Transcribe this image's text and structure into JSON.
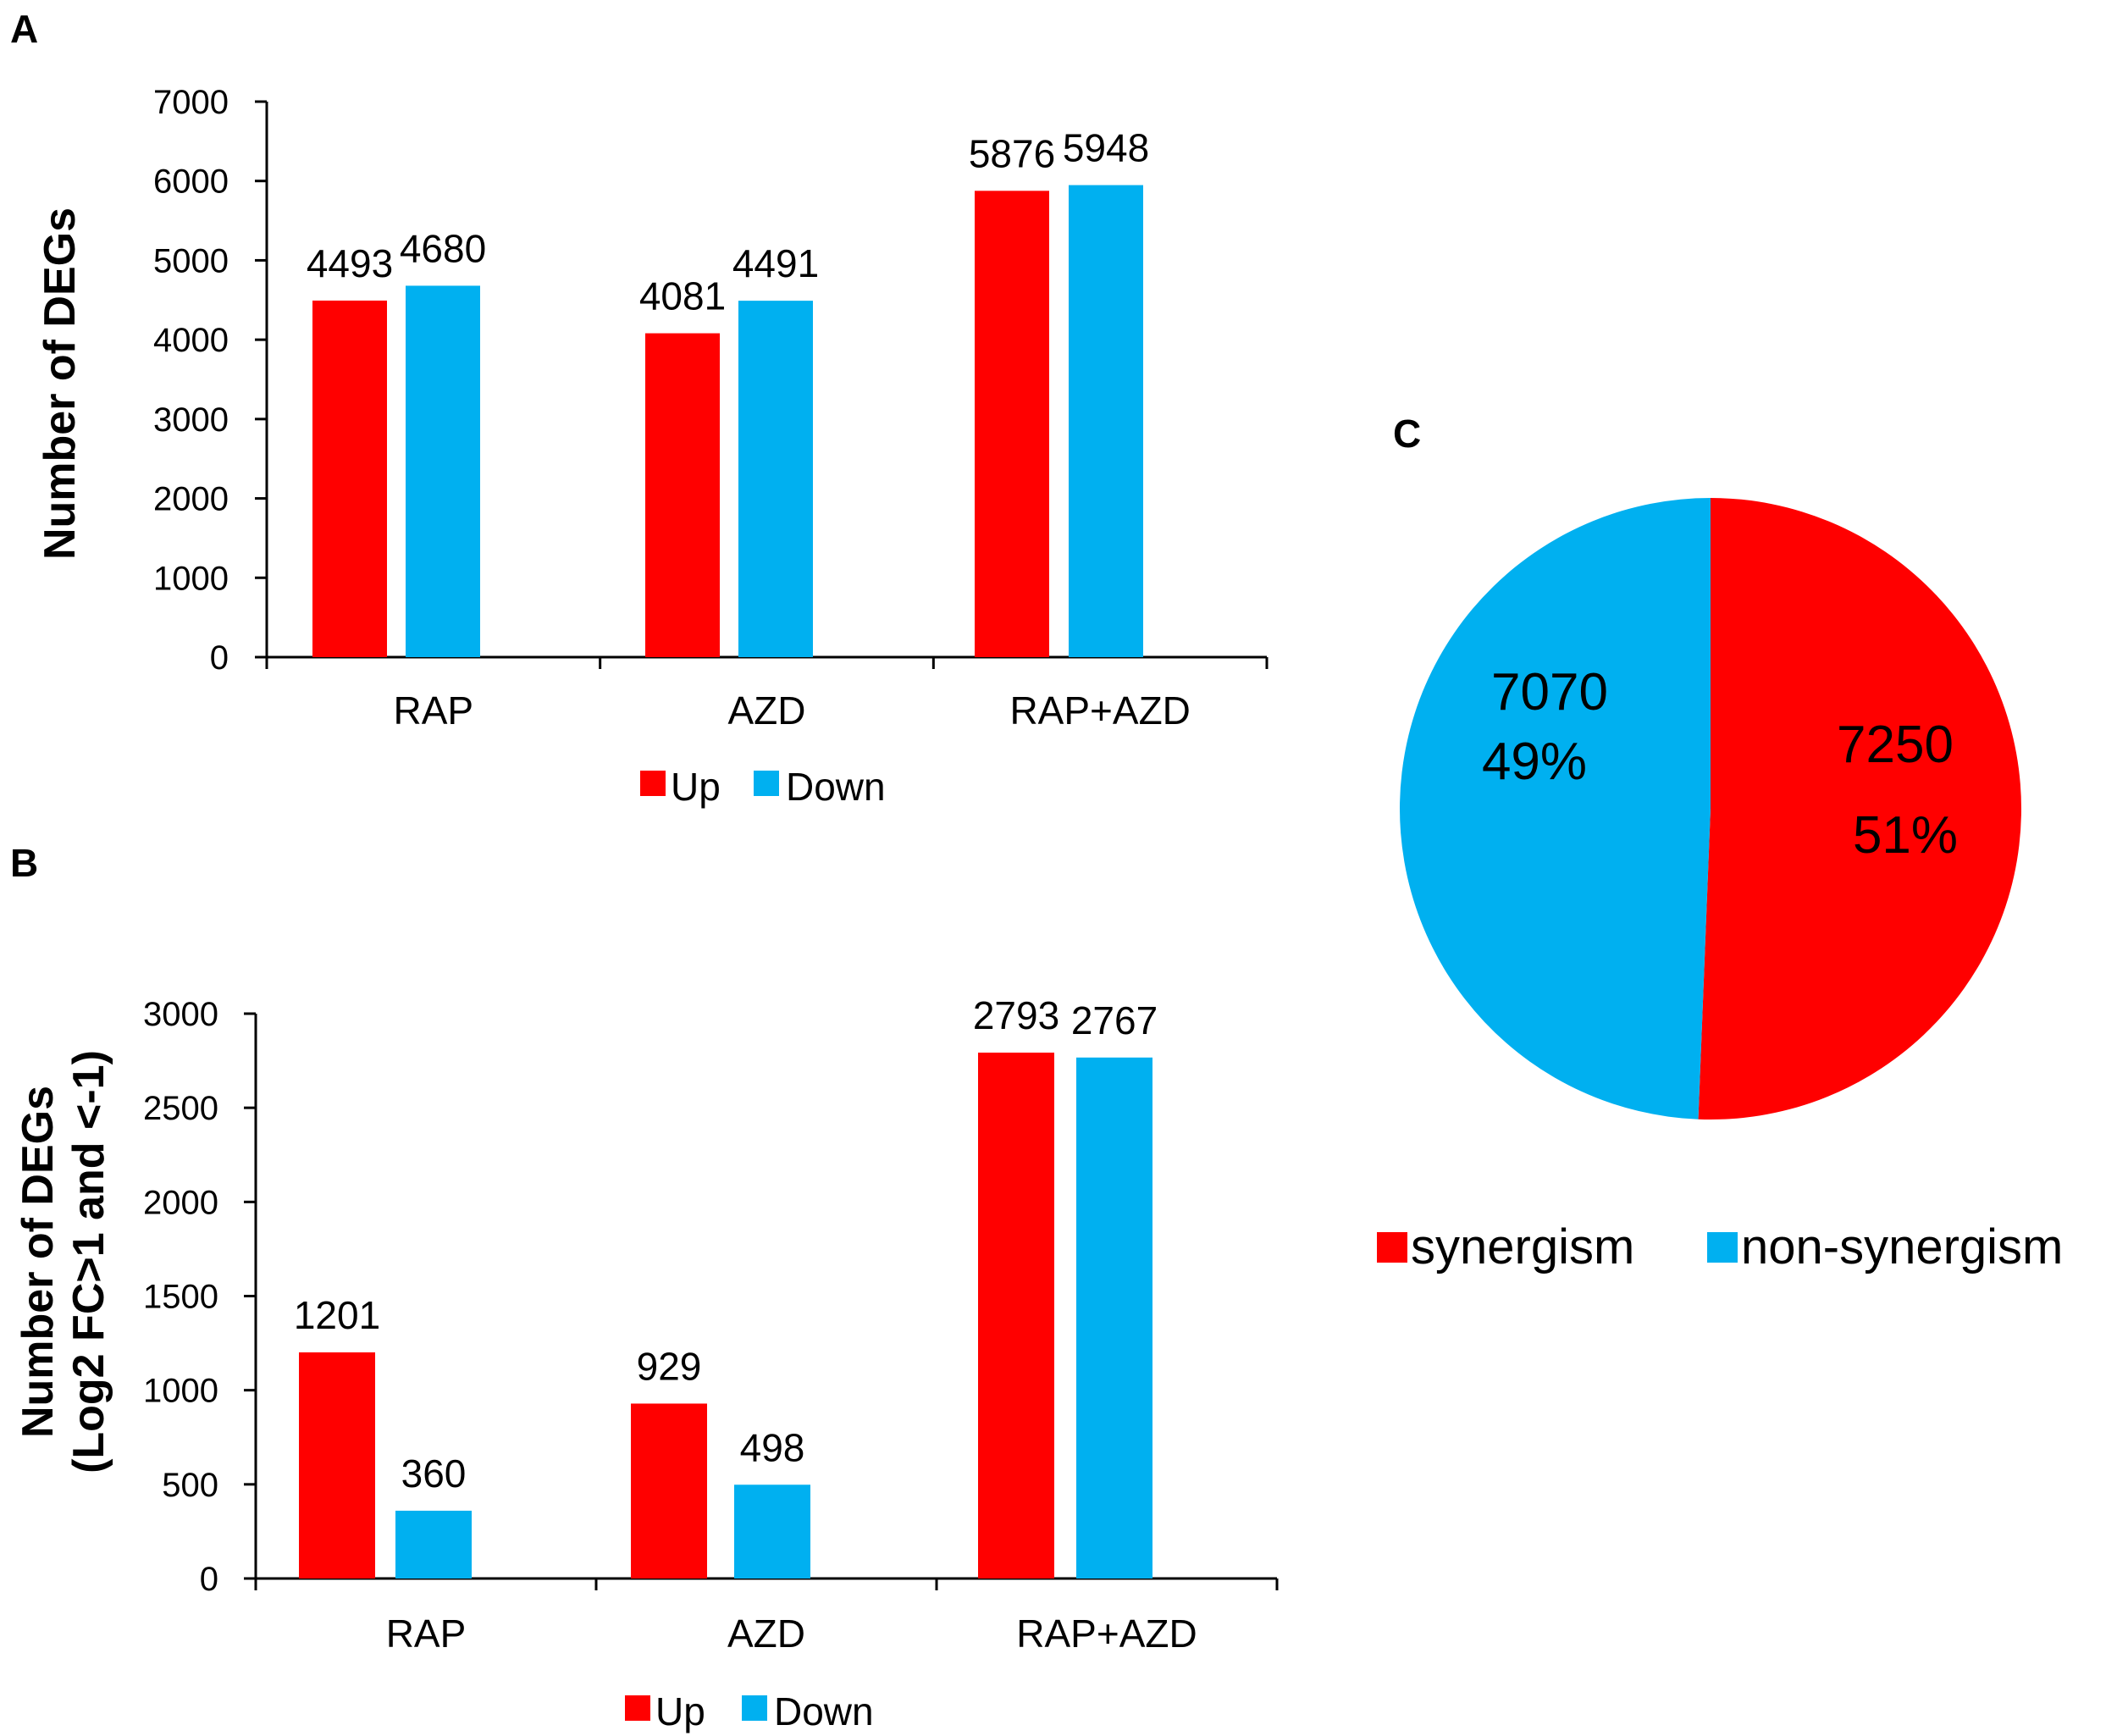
{
  "colors": {
    "up": "#ff0000",
    "down": "#00b0f0"
  },
  "panels": {
    "a": "A",
    "b": "B",
    "c": "C"
  },
  "chart_data": [
    {
      "id": "A",
      "type": "bar",
      "title": "",
      "xlabel": "",
      "ylabel": "Number of DEGs",
      "ylim": [
        0,
        7000
      ],
      "yticks": [
        "0",
        "1000",
        "2000",
        "3000",
        "4000",
        "5000",
        "6000",
        "7000"
      ],
      "categories": [
        "RAP",
        "AZD",
        "RAP+AZD"
      ],
      "series": [
        {
          "name": "Up",
          "values": [
            4493,
            4081,
            5876
          ]
        },
        {
          "name": "Down",
          "values": [
            4680,
            4491,
            5948
          ]
        }
      ],
      "legend": "bottom"
    },
    {
      "id": "B",
      "type": "bar",
      "title": "",
      "xlabel": "",
      "ylabel_line1": "Number of DEGs",
      "ylabel_line2": "(Log2 FC>1 and <-1)",
      "ylim": [
        0,
        3000
      ],
      "yticks": [
        "0",
        "500",
        "1000",
        "1500",
        "2000",
        "2500",
        "3000"
      ],
      "categories": [
        "RAP",
        "AZD",
        "RAP+AZD"
      ],
      "series": [
        {
          "name": "Up",
          "values": [
            1201,
            929,
            2793
          ]
        },
        {
          "name": "Down",
          "values": [
            360,
            498,
            2767
          ]
        }
      ],
      "legend": "bottom"
    },
    {
      "id": "C",
      "type": "pie",
      "slices": [
        {
          "name": "synergism",
          "value": 7250,
          "percent": "51%",
          "color": "#ff0000"
        },
        {
          "name": "non-synergism",
          "value": 7070,
          "percent": "49%",
          "color": "#00b0f0"
        }
      ],
      "legend": "bottom"
    }
  ]
}
